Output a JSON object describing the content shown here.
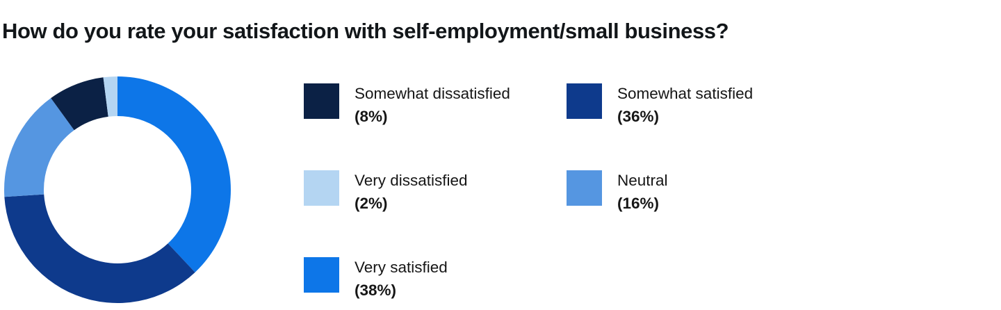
{
  "title": "How do you rate your satisfaction with self-employment/small business?",
  "colors": {
    "background": "#ffffff",
    "title_text": "#121619",
    "legend_text": "#161616"
  },
  "chart_data": {
    "type": "pie",
    "subtype": "donut",
    "title": "How do you rate your satisfaction with self-employment/small business?",
    "start_angle_deg": 0,
    "direction": "clockwise",
    "inner_radius_ratio": 0.65,
    "grid": false,
    "legend_position": "right-two-columns",
    "slices": [
      {
        "label": "Very satisfied",
        "value": 38,
        "color": "#0d76e8"
      },
      {
        "label": "Somewhat satisfied",
        "value": 36,
        "color": "#0e3a8c"
      },
      {
        "label": "Neutral",
        "value": 16,
        "color": "#5596e1"
      },
      {
        "label": "Somewhat dissatisfied",
        "value": 8,
        "color": "#0b2145"
      },
      {
        "label": "Very dissatisfied",
        "value": 2,
        "color": "#b4d5f2"
      }
    ],
    "legend": [
      {
        "label": "Somewhat dissatisfied",
        "pct_label": "(8%)",
        "color": "#0b2145"
      },
      {
        "label": "Somewhat satisfied",
        "pct_label": "(36%)",
        "color": "#0e3a8c"
      },
      {
        "label": "Very dissatisfied",
        "pct_label": "(2%)",
        "color": "#b4d5f2"
      },
      {
        "label": "Neutral",
        "pct_label": "(16%)",
        "color": "#5596e1"
      },
      {
        "label": "Very satisfied",
        "pct_label": "(38%)",
        "color": "#0d76e8"
      }
    ]
  }
}
